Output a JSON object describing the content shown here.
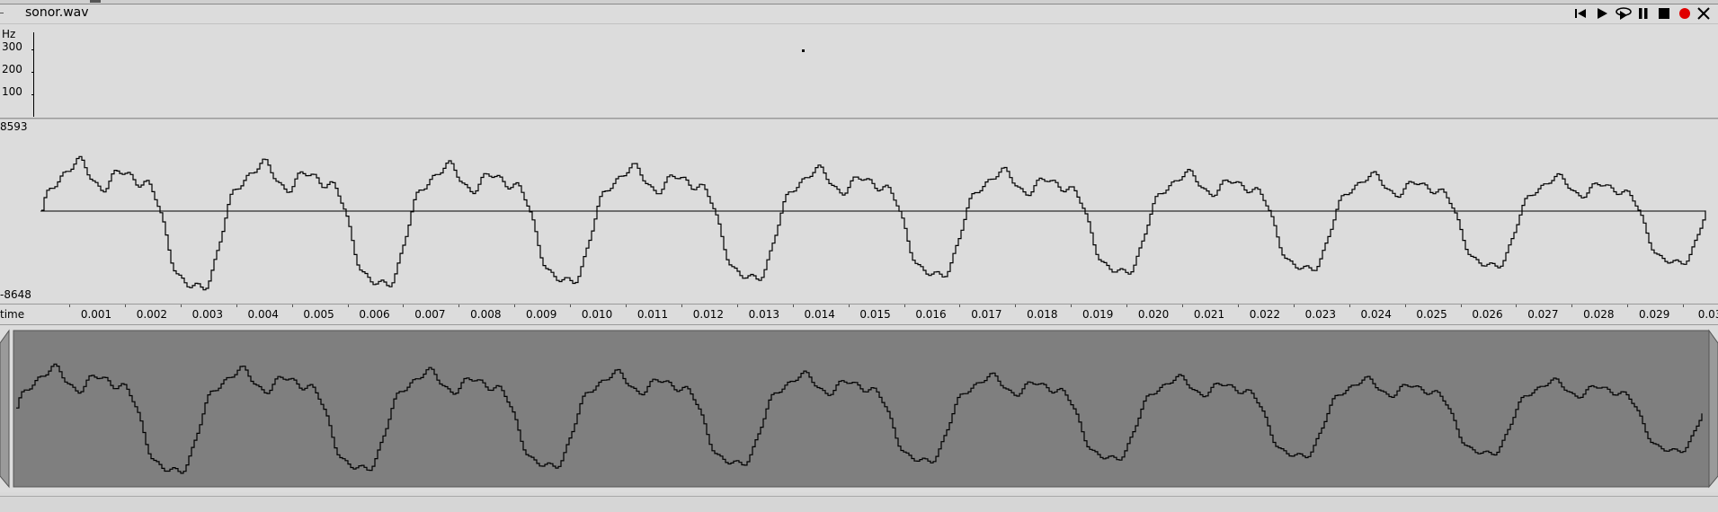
{
  "window": {
    "title": "sonor.wav",
    "controls": [
      {
        "name": "skip-to-start-button",
        "icon": "skip-start-icon"
      },
      {
        "name": "play-button",
        "icon": "play-icon"
      },
      {
        "name": "loop-play-button",
        "icon": "loop-play-icon"
      },
      {
        "name": "pause-button",
        "icon": "pause-icon"
      },
      {
        "name": "stop-button",
        "icon": "stop-icon"
      },
      {
        "name": "record-button",
        "icon": "record-icon"
      },
      {
        "name": "close-button",
        "icon": "close-icon"
      }
    ]
  },
  "pitch": {
    "unit": "Hz",
    "ticks": [
      "300",
      "200",
      "100"
    ]
  },
  "waveform": {
    "max_label": "8593",
    "min_label": "-8648"
  },
  "time_axis": {
    "label": "time",
    "ticks": [
      "0.001",
      "0.002",
      "0.003",
      "0.004",
      "0.005",
      "0.006",
      "0.007",
      "0.008",
      "0.009",
      "0.010",
      "0.011",
      "0.012",
      "0.013",
      "0.014",
      "0.015",
      "0.016",
      "0.017",
      "0.018",
      "0.019",
      "0.020",
      "0.021",
      "0.022",
      "0.023",
      "0.024",
      "0.025",
      "0.026",
      "0.027",
      "0.028",
      "0.029",
      "0.03"
    ]
  },
  "colors": {
    "waveform_line": "#000000",
    "overview_fill": "#7f7f7f",
    "record": "#e00000"
  }
}
